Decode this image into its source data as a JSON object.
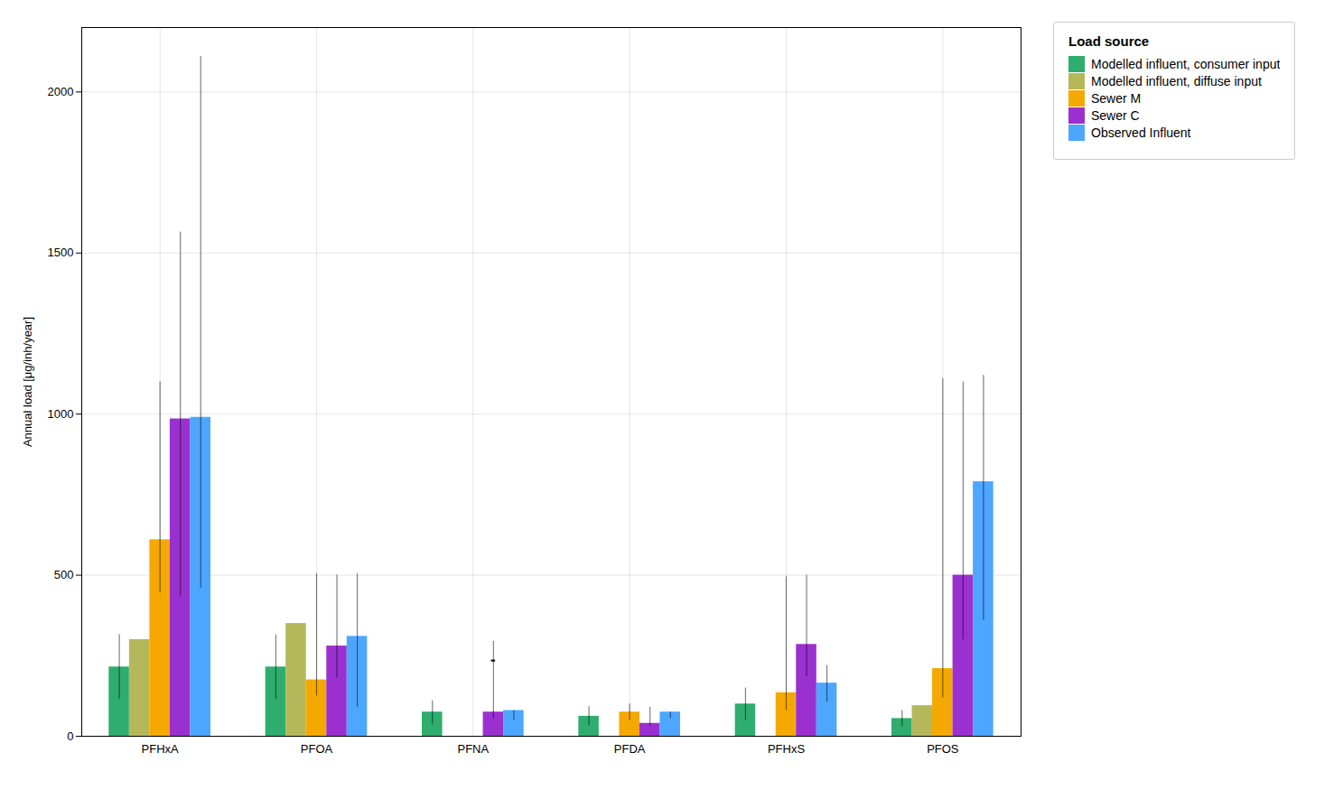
{
  "chart_data": {
    "type": "bar",
    "categories": [
      "PFHxA",
      "PFOA",
      "PFNA",
      "PFDA",
      "PFHxS",
      "PFOS"
    ],
    "series": [
      {
        "name": "Modelled influent, consumer input",
        "color": "#2EAD6E",
        "values": [
          215,
          215,
          75,
          62,
          100,
          55
        ],
        "yerr_low": [
          100,
          100,
          40,
          30,
          50,
          25
        ],
        "yerr_high": [
          100,
          100,
          35,
          30,
          50,
          25
        ]
      },
      {
        "name": "Modelled influent, diffuse input",
        "color": "#B5B85A",
        "values": [
          300,
          350,
          0,
          0,
          0,
          95
        ],
        "yerr_low": [
          0,
          0,
          0,
          0,
          0,
          0
        ],
        "yerr_high": [
          0,
          0,
          0,
          0,
          0,
          0
        ]
      },
      {
        "name": "Sewer M",
        "color": "#F5A800",
        "values": [
          610,
          175,
          0,
          75,
          135,
          210
        ],
        "yerr_low": [
          165,
          50,
          0,
          25,
          55,
          90
        ],
        "yerr_high": [
          490,
          330,
          0,
          25,
          360,
          900
        ]
      },
      {
        "name": "Sewer C",
        "color": "#9B30D0",
        "values": [
          985,
          280,
          75,
          40,
          285,
          500
        ],
        "yerr_low": [
          550,
          100,
          20,
          10,
          100,
          200
        ],
        "yerr_high": [
          580,
          220,
          220,
          50,
          215,
          600
        ],
        "dash_values": [
          null,
          null,
          235,
          null,
          null,
          null
        ]
      },
      {
        "name": "Observed Influent",
        "color": "#4DA6FF",
        "values": [
          990,
          310,
          80,
          75,
          165,
          790
        ],
        "yerr_low": [
          530,
          220,
          30,
          20,
          60,
          430
        ],
        "yerr_high": [
          1120,
          195,
          0,
          0,
          55,
          330
        ]
      }
    ],
    "ylabel": "Annual load [μg/inh/year]",
    "ylim": [
      0,
      2200
    ],
    "yticks": [
      0,
      500,
      1000,
      1500,
      2000
    ],
    "grid": true,
    "legend": "right",
    "legend_title": "Load source"
  }
}
